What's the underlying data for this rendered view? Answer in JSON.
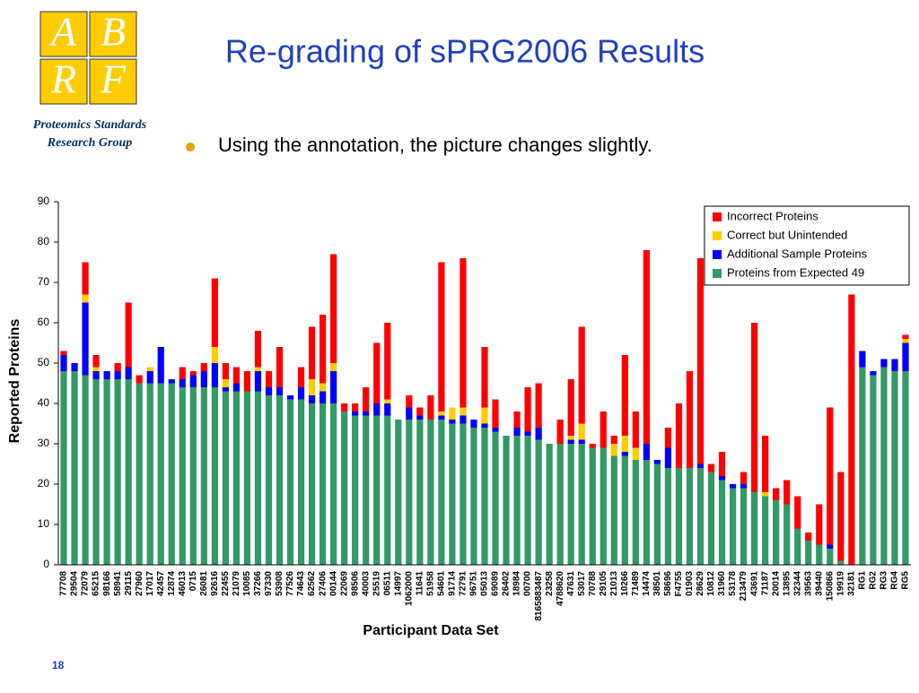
{
  "logo": {
    "letters": [
      "A",
      "B",
      "R",
      "F"
    ],
    "group": [
      "Proteomics Standards",
      "Research Group"
    ]
  },
  "title": "Re-grading of sPRG2006 Results",
  "bullet": "Using the annotation, the picture changes slightly.",
  "page_number": "18",
  "chart_data": {
    "type": "stacked_bar",
    "xlabel": "Participant Data Set",
    "ylabel": "Reported Proteins",
    "categories": [
      "77708",
      "29504",
      "72079",
      "65215",
      "98166",
      "58941",
      "29115",
      "27960",
      "17017",
      "42457",
      "12874",
      "46013",
      "0715",
      "26081",
      "92616",
      "22455",
      "21079",
      "10085",
      "37266",
      "97330",
      "53908",
      "77526",
      "74643",
      "62562",
      "27406",
      "00144",
      "22069",
      "98506",
      "40003",
      "25519",
      "06511",
      "14997",
      "1062000",
      "11641",
      "51958",
      "54601",
      "91714",
      "72791",
      "96751",
      "05013",
      "69089",
      "26402",
      "18984",
      "00700",
      "8165883487",
      "23258",
      "4788620",
      "47631",
      "53017",
      "70788",
      "29105",
      "21013",
      "10266",
      "71489",
      "14474",
      "38501",
      "58696",
      "F4755",
      "01903",
      "28629",
      "10812",
      "31960",
      "53178",
      "213479",
      "43691",
      "71187",
      "20014",
      "13895",
      "32344",
      "39563",
      "39440",
      "150866",
      "19919",
      "32181",
      "RG1",
      "RG2",
      "RG3",
      "RG4",
      "RG5"
    ],
    "series": [
      {
        "name": "Proteins from Expected 49",
        "color": "#339966",
        "values": [
          48,
          48,
          47,
          46,
          46,
          46,
          46,
          45,
          45,
          45,
          45,
          44,
          44,
          44,
          44,
          43,
          43,
          43,
          43,
          42,
          42,
          41,
          41,
          40,
          40,
          40,
          38,
          37,
          37,
          37,
          37,
          36,
          36,
          36,
          36,
          36,
          35,
          35,
          34,
          34,
          33,
          32,
          32,
          32,
          31,
          30,
          30,
          30,
          30,
          29,
          29,
          27,
          27,
          26,
          26,
          25,
          24,
          24,
          24,
          24,
          23,
          21,
          19,
          19,
          18,
          17,
          16,
          15,
          9,
          6,
          5,
          4,
          1,
          0,
          49,
          47,
          49,
          48,
          48
        ]
      },
      {
        "name": "Additional Sample Proteins",
        "color": "#0000ff",
        "values": [
          4,
          2,
          18,
          2,
          2,
          2,
          3,
          0,
          3,
          9,
          1,
          2,
          3,
          4,
          6,
          1,
          2,
          0,
          5,
          2,
          2,
          1,
          3,
          2,
          3,
          8,
          0,
          1,
          1,
          3,
          3,
          0,
          3,
          1,
          0,
          1,
          1,
          2,
          2,
          1,
          1,
          0,
          2,
          1,
          3,
          0,
          0,
          1,
          1,
          0,
          0,
          0,
          1,
          0,
          4,
          1,
          5,
          0,
          0,
          1,
          0,
          1,
          1,
          1,
          0,
          0,
          0,
          0,
          0,
          0,
          0,
          1,
          0,
          0,
          4,
          1,
          2,
          3,
          7
        ]
      },
      {
        "name": "Correct but Unintended",
        "color": "#ffcc00",
        "values": [
          0,
          0,
          2,
          1,
          0,
          0,
          0,
          0,
          1,
          0,
          0,
          0,
          0,
          0,
          4,
          2,
          0,
          0,
          1,
          0,
          0,
          0,
          0,
          4,
          2,
          2,
          0,
          0,
          0,
          0,
          1,
          0,
          0,
          0,
          0,
          1,
          3,
          2,
          0,
          4,
          0,
          0,
          0,
          0,
          0,
          0,
          0,
          1,
          4,
          0,
          0,
          3,
          4,
          3,
          0,
          0,
          0,
          0,
          0,
          0,
          0,
          0,
          0,
          0,
          0,
          1,
          0,
          0,
          0,
          0,
          0,
          0,
          0,
          0,
          0,
          0,
          0,
          0,
          1
        ]
      },
      {
        "name": "Incorrect Proteins",
        "color": "#ff0000",
        "values": [
          1,
          0,
          8,
          3,
          0,
          2,
          16,
          2,
          0,
          0,
          0,
          3,
          1,
          2,
          17,
          4,
          4,
          5,
          9,
          4,
          10,
          0,
          5,
          13,
          17,
          27,
          2,
          2,
          6,
          15,
          19,
          0,
          3,
          2,
          6,
          37,
          0,
          37,
          0,
          15,
          7,
          0,
          4,
          11,
          11,
          0,
          6,
          14,
          24,
          1,
          9,
          2,
          20,
          9,
          48,
          0,
          5,
          16,
          24,
          51,
          2,
          6,
          0,
          3,
          42,
          14,
          3,
          6,
          8,
          2,
          10,
          34,
          22,
          67,
          0,
          0,
          0,
          0,
          1
        ]
      }
    ],
    "ylim": [
      0,
      90
    ],
    "yticks": [
      0,
      10,
      20,
      30,
      40,
      50,
      60,
      70,
      80,
      90
    ],
    "grid": false,
    "legend": "upper right"
  }
}
